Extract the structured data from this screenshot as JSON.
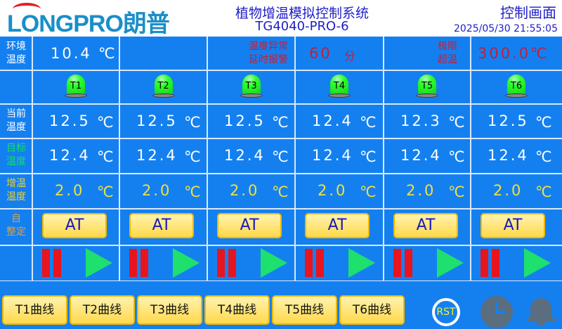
{
  "header": {
    "logo": "LONGPRO朗普",
    "title": "植物增温模拟控制系统",
    "model": "TG4040-PRO-6",
    "screen_name": "控制画面",
    "datetime": "2025/05/30 21:55:05"
  },
  "ambient": {
    "label_line1": "环境",
    "label_line2": "温度",
    "value": "10.4",
    "unit": "℃",
    "alarm_delay_label1": "温度异常",
    "alarm_delay_label2": "延时报警",
    "alarm_delay_value": "60",
    "alarm_delay_unit": "分",
    "limit_label1": "极限",
    "limit_label2": "超温",
    "limit_value": "300.0",
    "limit_unit": "℃"
  },
  "colors": {
    "background": "#1480f0",
    "current": "#ffffff",
    "target": "#ffffff",
    "heating": "#f0e040",
    "alarm_text": "#c0203a",
    "lamp_on": "#2aff2a"
  },
  "rows": {
    "current": {
      "label1": "当前",
      "label2": "温度",
      "label_color": "#ffffff"
    },
    "target": {
      "label1": "目标",
      "label2": "温度",
      "label_color": "#10e060"
    },
    "heating": {
      "label1": "增温",
      "label2": "温度",
      "label_color": "#e0d040"
    },
    "autotune": {
      "label1": "自",
      "label2": "整定",
      "label_color": "#e0a040"
    }
  },
  "unit": "℃",
  "channels": [
    {
      "name": "T1",
      "current": "12.5",
      "target": "12.4",
      "heating": "2.0",
      "at_label": "AT",
      "lamp_on": true
    },
    {
      "name": "T2",
      "current": "12.5",
      "target": "12.4",
      "heating": "2.0",
      "at_label": "AT",
      "lamp_on": true
    },
    {
      "name": "T3",
      "current": "12.5",
      "target": "12.4",
      "heating": "2.0",
      "at_label": "AT",
      "lamp_on": true
    },
    {
      "name": "T4",
      "current": "12.4",
      "target": "12.4",
      "heating": "2.0",
      "at_label": "AT",
      "lamp_on": true
    },
    {
      "name": "T5",
      "current": "12.3",
      "target": "12.4",
      "heating": "2.0",
      "at_label": "AT",
      "lamp_on": true
    },
    {
      "name": "T6",
      "current": "12.5",
      "target": "12.4",
      "heating": "2.0",
      "at_label": "AT",
      "lamp_on": true
    }
  ],
  "bottom": {
    "curve_buttons": [
      "T1曲线",
      "T2曲线",
      "T3曲线",
      "T4曲线",
      "T5曲线",
      "T6曲线"
    ],
    "reset_label": "RST",
    "icons": [
      "reset-icon",
      "clock-icon",
      "bell-icon"
    ]
  }
}
